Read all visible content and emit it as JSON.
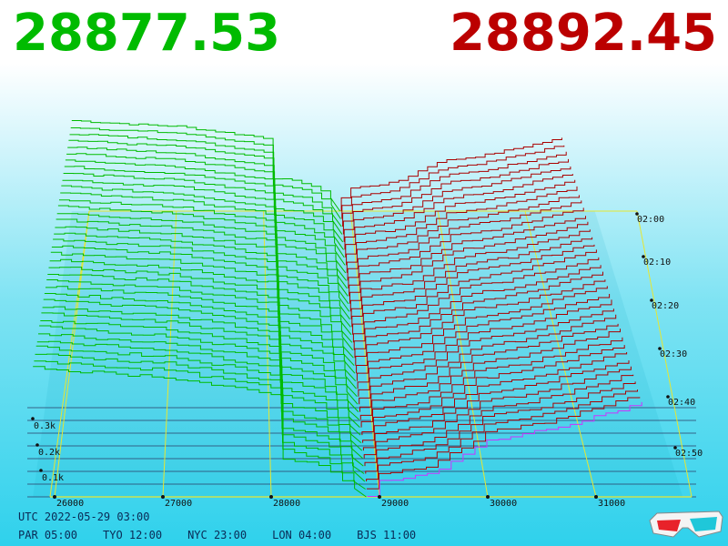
{
  "header": {
    "bid_price": "28877.53",
    "ask_price": "28892.45",
    "bid_color": "#00bb00",
    "ask_color": "#bb0000"
  },
  "footer": {
    "utc_time": "UTC 2022-05-29 03:00",
    "zones": [
      {
        "label": "PAR 05:00"
      },
      {
        "label": "TYO 12:00"
      },
      {
        "label": "NYC 23:00"
      },
      {
        "label": "LON 04:00"
      },
      {
        "label": "BJS 11:00"
      }
    ]
  },
  "icons": {
    "glasses": "3d-glasses-icon"
  },
  "chart_data": {
    "type": "area",
    "description_3d": "order book depth over time",
    "price_ticks": [
      "26000",
      "27000",
      "28000",
      "29000",
      "30000",
      "31000"
    ],
    "volume_ticks": [
      "0.1k",
      "0.2k",
      "0.3k"
    ],
    "time_ticks": [
      "02:00",
      "02:10",
      "02:20",
      "02:30",
      "02:40",
      "02:50"
    ],
    "x_range": [
      26000,
      31500
    ],
    "volume_range": [
      0,
      0.5
    ],
    "bid_series_color": "#00bb00",
    "ask_series_color": "#aa0000",
    "latest_ask_color": "#cc33ff",
    "bid_depth_profile": [
      {
        "price": 25800,
        "volume": 0.43
      },
      {
        "price": 26500,
        "volume": 0.41
      },
      {
        "price": 27000,
        "volume": 0.4
      },
      {
        "price": 27500,
        "volume": 0.37
      },
      {
        "price": 28000,
        "volume": 0.34
      },
      {
        "price": 28100,
        "volume": 0.13
      },
      {
        "price": 28500,
        "volume": 0.1
      },
      {
        "price": 28877,
        "volume": 0.0
      }
    ],
    "ask_depth_profile": [
      {
        "price": 28892,
        "volume": 0.0
      },
      {
        "price": 29000,
        "volume": 0.05
      },
      {
        "price": 29500,
        "volume": 0.08
      },
      {
        "price": 30000,
        "volume": 0.19
      },
      {
        "price": 30500,
        "volume": 0.22
      },
      {
        "price": 31000,
        "volume": 0.27
      },
      {
        "price": 31500,
        "volume": 0.32
      }
    ]
  }
}
